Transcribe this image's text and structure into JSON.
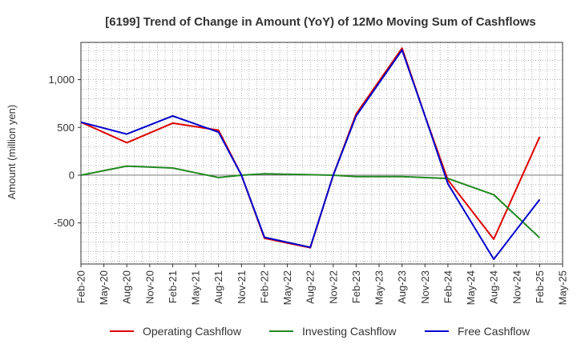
{
  "chart_data": {
    "type": "line",
    "title": "[6199]  Trend of Change in Amount (YoY) of 12Mo Moving Sum of Cashflows",
    "xlabel": "",
    "ylabel": "Amount (million yen)",
    "ylim": [
      -930,
      1390
    ],
    "yticks": [
      1000,
      500,
      0,
      -500
    ],
    "ytick_labels": [
      "1,000",
      "500",
      "0",
      "-500"
    ],
    "categories": [
      "Feb-20",
      "May-20",
      "Aug-20",
      "Nov-20",
      "Feb-21",
      "May-21",
      "Aug-21",
      "Nov-21",
      "Feb-22",
      "May-22",
      "Aug-22",
      "Nov-22",
      "Feb-23",
      "May-23",
      "Aug-23",
      "Nov-23",
      "Feb-24",
      "May-24",
      "Aug-24",
      "Nov-24",
      "Feb-25",
      "May-25"
    ],
    "grid": true,
    "legend_position": "bottom",
    "series": [
      {
        "name": "Operating Cashflow",
        "color": "#dd0000",
        "points": [
          [
            0,
            555
          ],
          [
            2,
            340
          ],
          [
            4,
            545
          ],
          [
            6,
            470
          ],
          [
            7,
            0
          ],
          [
            8,
            -660
          ],
          [
            10,
            -760
          ],
          [
            11,
            0
          ],
          [
            12,
            640
          ],
          [
            14,
            1330
          ],
          [
            15,
            620
          ],
          [
            16,
            -50
          ],
          [
            18,
            -670
          ],
          [
            20,
            400
          ]
        ]
      },
      {
        "name": "Investing Cashflow",
        "color": "#228822",
        "points": [
          [
            0,
            0
          ],
          [
            2,
            95
          ],
          [
            4,
            75
          ],
          [
            6,
            -25
          ],
          [
            7,
            0
          ],
          [
            8,
            15
          ],
          [
            10,
            5
          ],
          [
            11,
            0
          ],
          [
            12,
            -15
          ],
          [
            14,
            -15
          ],
          [
            16,
            -35
          ],
          [
            18,
            -205
          ],
          [
            20,
            -655
          ]
        ]
      },
      {
        "name": "Free Cashflow",
        "color": "#0000cc",
        "points": [
          [
            0,
            555
          ],
          [
            2,
            430
          ],
          [
            4,
            620
          ],
          [
            6,
            450
          ],
          [
            7,
            0
          ],
          [
            8,
            -650
          ],
          [
            10,
            -755
          ],
          [
            11,
            0
          ],
          [
            12,
            620
          ],
          [
            14,
            1310
          ],
          [
            15,
            620
          ],
          [
            16,
            -90
          ],
          [
            18,
            -880
          ],
          [
            20,
            -255
          ]
        ]
      }
    ]
  }
}
